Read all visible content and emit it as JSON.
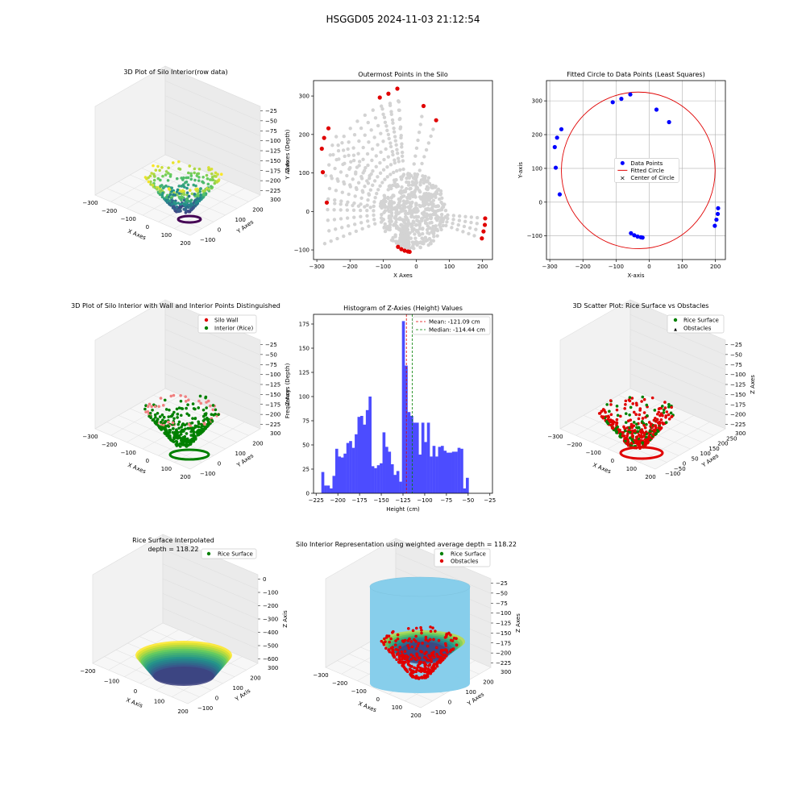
{
  "figure": {
    "suptitle": "HSGGD05 2024-11-03 21:12:54"
  },
  "colors": {
    "red": "#e00000",
    "green": "#008000",
    "blue": "#0000ff",
    "gray": "#d3d3d3",
    "hist": "#4c4cff",
    "sky": "#87ceeb",
    "axes_bg": "#f2f2f2",
    "grid": "#b0b0b0"
  },
  "chart_data": [
    {
      "type": "scatter",
      "projection": "3d",
      "title": "3D Plot of Silo Interior(row data)",
      "xlabel": "X Axes",
      "ylabel": "Y Axes",
      "zlabel": "Z Axes (Depth)",
      "xticks": [
        "−300",
        "−200",
        "−100",
        "0",
        "100",
        "200"
      ],
      "yticks": [
        "−100",
        "0",
        "100",
        "200",
        "300"
      ],
      "zticks": [
        "−25",
        "−50",
        "−75",
        "−100",
        "−125",
        "−150",
        "−175",
        "−200",
        "−225"
      ],
      "colormap": "viridis"
    },
    {
      "type": "scatter",
      "title": "Outermost Points in the Silo",
      "xlabel": "X Axes",
      "ylabel": "Y Axes",
      "xlim": [
        -310,
        230
      ],
      "ylim": [
        -125,
        340
      ],
      "xticks": [
        -300,
        -200,
        -100,
        0,
        100,
        200
      ],
      "yticks": [
        -100,
        0,
        100,
        200,
        300
      ],
      "grid": false,
      "series": [
        {
          "color": "gray",
          "marker": "dense rays"
        },
        {
          "color": "red",
          "points": [
            [
              -282,
              102
            ],
            [
              -285,
              163
            ],
            [
              -278,
              191
            ],
            [
              -265,
              216
            ],
            [
              -270,
              23
            ],
            [
              -110,
              296
            ],
            [
              -84,
              306
            ],
            [
              -57,
              319
            ],
            [
              22,
              274
            ],
            [
              60,
              237
            ],
            [
              -55,
              -92
            ],
            [
              -45,
              -98
            ],
            [
              -35,
              -102
            ],
            [
              -25,
              -104
            ],
            [
              -20,
              -105
            ],
            [
              198,
              -70
            ],
            [
              203,
              -52
            ],
            [
              207,
              -35
            ],
            [
              208,
              -18
            ]
          ]
        }
      ]
    },
    {
      "type": "scatter",
      "title": "Fitted Circle to Data Points (Least Squares)",
      "xlabel": "X-axis",
      "ylabel": "Y-axis",
      "xlim": [
        -310,
        230
      ],
      "ylim": [
        -170,
        360
      ],
      "xticks": [
        -300,
        -200,
        -100,
        0,
        100,
        200
      ],
      "yticks": [
        -100,
        0,
        100,
        200,
        300
      ],
      "grid": true,
      "legend": "center",
      "legend_labels": [
        "Data Points",
        "Fitted Circle",
        "Center of Circle"
      ],
      "points": [
        [
          -282,
          102
        ],
        [
          -285,
          163
        ],
        [
          -278,
          191
        ],
        [
          -265,
          216
        ],
        [
          -270,
          23
        ],
        [
          -110,
          296
        ],
        [
          -84,
          306
        ],
        [
          -57,
          319
        ],
        [
          22,
          274
        ],
        [
          60,
          237
        ],
        [
          -55,
          -92
        ],
        [
          -45,
          -98
        ],
        [
          -35,
          -102
        ],
        [
          -25,
          -104
        ],
        [
          -20,
          -105
        ],
        [
          198,
          -70
        ],
        [
          203,
          -52
        ],
        [
          207,
          -35
        ],
        [
          208,
          -18
        ]
      ],
      "circle": {
        "cx": -33,
        "cy": 94,
        "r": 232
      }
    },
    {
      "type": "scatter",
      "projection": "3d",
      "title": "3D Plot of Silo Interior with Wall and Interior Points Distinguished",
      "xlabel": "X Axes",
      "ylabel": "Y Axes",
      "zlabel": "Z Axes (Depth)",
      "xticks": [
        "−300",
        "−200",
        "−100",
        "0",
        "100",
        "200"
      ],
      "yticks": [
        "−100",
        "0",
        "100",
        "200",
        "300"
      ],
      "zticks": [
        "−25",
        "−50",
        "−75",
        "−100",
        "−125",
        "−150",
        "−175",
        "−200",
        "−225"
      ],
      "legend": "top-right",
      "legend_labels": [
        "Silo Wall",
        "Interior (Rice)"
      ]
    },
    {
      "type": "histogram",
      "title": "Histogram of Z-Axies (Height) Values",
      "xlabel": "Height (cm)",
      "ylabel": "Frequency",
      "xlim": [
        -228,
        -22
      ],
      "ylim": [
        0,
        185
      ],
      "xticks": [
        -225,
        -200,
        -175,
        -150,
        -125,
        -100,
        -75,
        -50,
        -25
      ],
      "yticks": [
        0,
        25,
        50,
        75,
        100,
        125,
        150,
        175
      ],
      "bin_width": 3.2,
      "bin_start": -219,
      "values": [
        22,
        8,
        8,
        5,
        18,
        46,
        38,
        37,
        41,
        52,
        54,
        47,
        61,
        79,
        80,
        71,
        86,
        100,
        28,
        26,
        29,
        31,
        63,
        48,
        43,
        30,
        19,
        23,
        12,
        178,
        132,
        84,
        80,
        73,
        73,
        40,
        73,
        53,
        73,
        38,
        49,
        38,
        48,
        49,
        44,
        42,
        42,
        43,
        43,
        47,
        46,
        5,
        16
      ],
      "mean": -121.09,
      "median": -114.44,
      "legend": "top-right",
      "legend_labels": [
        "Mean: -121.09 cm",
        "Median: -114.44 cm"
      ]
    },
    {
      "type": "scatter",
      "projection": "3d",
      "title": "3D Scatter Plot: Rice Surface vs Obstacles",
      "xlabel": "X Axes",
      "ylabel": "Y Axes",
      "zlabel": "Z Axes",
      "xticks": [
        "−300",
        "−200",
        "−100",
        "0",
        "100",
        "200"
      ],
      "yticks": [
        "−100",
        "−50",
        "0",
        "50",
        "100",
        "150",
        "200",
        "250",
        "300"
      ],
      "zticks": [
        "−25",
        "−50",
        "−75",
        "−100",
        "−125",
        "−150",
        "−175",
        "−200",
        "−225"
      ],
      "legend": "top-right",
      "legend_labels": [
        "Rice Surface",
        "Obstacles"
      ]
    },
    {
      "type": "surface",
      "projection": "3d",
      "title": "Rice Surface Interpolated",
      "subtitle": "depth = 118.22",
      "xlabel": "X Axis",
      "ylabel": "Y Axis",
      "zlabel": "Z Axis",
      "xticks": [
        "−200",
        "−100",
        "0",
        "100",
        "200"
      ],
      "yticks": [
        "−100",
        "0",
        "100",
        "200",
        "300"
      ],
      "zticks": [
        "0",
        "−100",
        "−200",
        "−300",
        "−400",
        "−500",
        "−600"
      ],
      "legend": "top-right",
      "legend_labels": [
        "Rice Surface"
      ]
    },
    {
      "type": "surface",
      "projection": "3d",
      "title": "Silo Interior Representation using weighted average depth = 118.22",
      "xlabel": "X Axes",
      "ylabel": "Y Axes",
      "zlabel": "Z Axes",
      "xticks": [
        "−300",
        "−200",
        "−100",
        "0",
        "100",
        "200"
      ],
      "yticks": [
        "−100",
        "0",
        "100",
        "200",
        "300"
      ],
      "zticks": [
        "−25",
        "−50",
        "−75",
        "−100",
        "−125",
        "−150",
        "−175",
        "−200",
        "−225"
      ],
      "legend": "top-center",
      "legend_labels": [
        "Rice Surface",
        "Obstacles"
      ]
    }
  ]
}
